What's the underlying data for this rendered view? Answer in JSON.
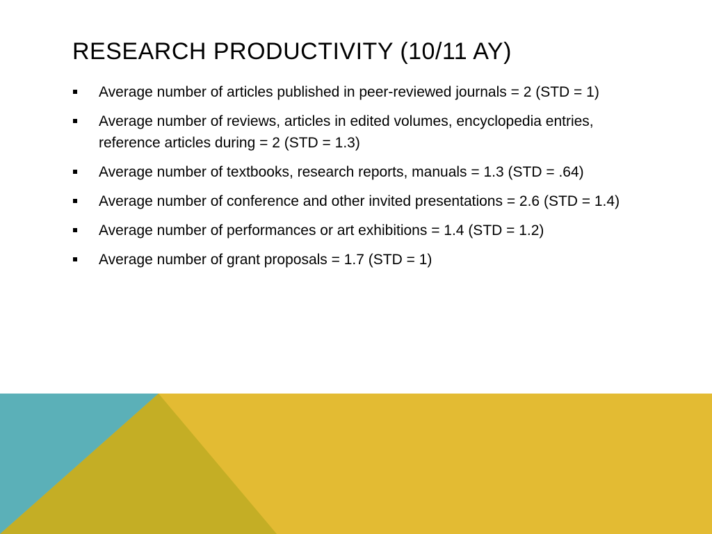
{
  "slide": {
    "title": "RESEARCH PRODUCTIVITY (10/11 AY)",
    "bullets": [
      {
        "text": "Average number of articles published in peer-reviewed journals  = 2 (STD = 1)"
      },
      {
        "text": "Average number of reviews, articles in edited volumes, encyclopedia entries, reference articles during  = 2 (STD = 1.3)"
      },
      {
        "text": "Average number of textbooks, research reports, manuals = 1.3 (STD = .64)"
      },
      {
        "text": "Average number of conference and other invited presentations = 2.6 (STD = 1.4)"
      },
      {
        "text": "Average number of performances or art exhibitions = 1.4 (STD = 1.2)"
      },
      {
        "text": "Average number of grant proposals = 1.7 (STD = 1)"
      }
    ]
  },
  "theme": {
    "teal": "#5BB0B8",
    "olive": "#C4AE25",
    "gold": "#E3BB33"
  }
}
